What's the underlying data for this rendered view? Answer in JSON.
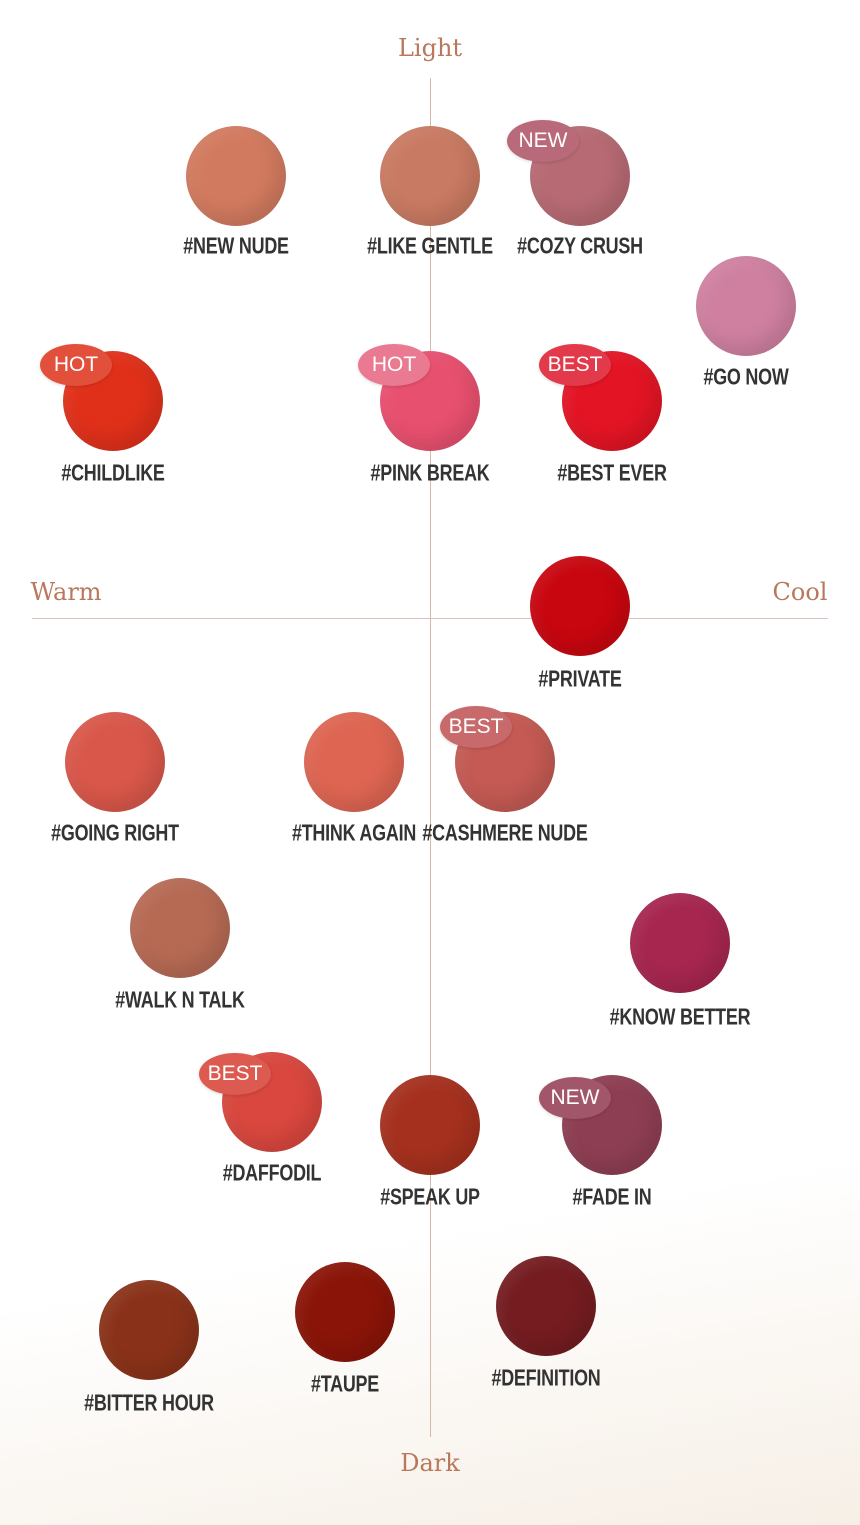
{
  "axes": {
    "top": "Light",
    "bottom": "Dark",
    "left": "Warm",
    "right": "Cool",
    "color": "#b9785b"
  },
  "shades": [
    {
      "name": "#NEW NUDE",
      "color": "#d27a5f"
    },
    {
      "name": "#LIKE GENTLE",
      "color": "#c97a62"
    },
    {
      "name": "#COZY CRUSH",
      "color": "#b76a73",
      "badge": "NEW",
      "badge_color": "#b86a7a"
    },
    {
      "name": "#GO NOW",
      "color": "#cf80a0"
    },
    {
      "name": "#CHILDLIKE",
      "color": "#e0301a",
      "badge": "HOT",
      "badge_color": "#e2503c"
    },
    {
      "name": "#PINK BREAK",
      "color": "#e8506f",
      "badge": "HOT",
      "badge_color": "#e97a91"
    },
    {
      "name": "#BEST EVER",
      "color": "#e31424",
      "badge": "BEST",
      "badge_color": "#e23a4a"
    },
    {
      "name": "#PRIVATE",
      "color": "#c8060f"
    },
    {
      "name": "#GOING RIGHT",
      "color": "#d9574a"
    },
    {
      "name": "#THINK AGAIN",
      "color": "#de6552"
    },
    {
      "name": "#CASHMERE NUDE",
      "color": "#c45a53",
      "badge": "BEST",
      "badge_color": "#c86a6c"
    },
    {
      "name": "#WALK N TALK",
      "color": "#b66a54"
    },
    {
      "name": "#KNOW BETTER",
      "color": "#a6264f"
    },
    {
      "name": "#DAFFODIL",
      "color": "#d9473e",
      "badge": "BEST",
      "badge_color": "#dc5a50"
    },
    {
      "name": "#SPEAK UP",
      "color": "#a5301e"
    },
    {
      "name": "#FADE IN",
      "color": "#8e3e52",
      "badge": "NEW",
      "badge_color": "#a2566a"
    },
    {
      "name": "#BITTER HOUR",
      "color": "#8a3219"
    },
    {
      "name": "#TAUPE",
      "color": "#8a1408"
    },
    {
      "name": "#DEFINITION",
      "color": "#741c20"
    }
  ]
}
